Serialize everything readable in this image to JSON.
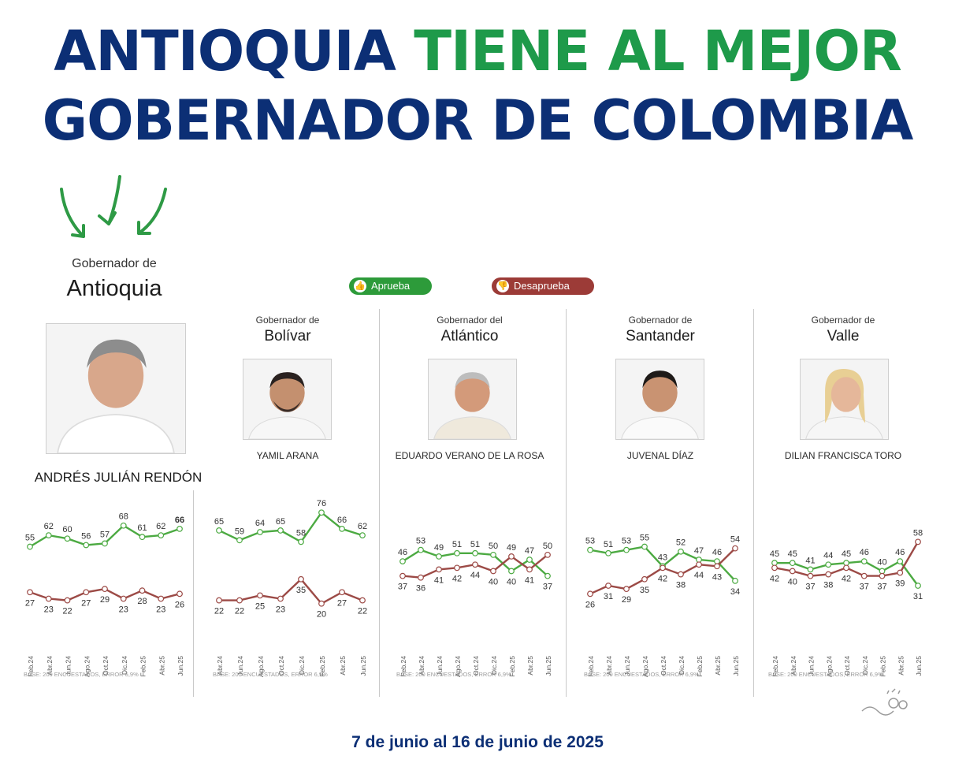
{
  "title": {
    "line1_blue": "ANTIOQUIA",
    "line1_green": "TIENE AL MEJOR",
    "line2": "GOBERNADOR DE COLOMBIA"
  },
  "featured": {
    "label_small": "Gobernador de",
    "label_big": "Antioquia",
    "name": "ANDRÉS JULIÁN RENDÓN"
  },
  "legend": {
    "approve": "Aprueba",
    "disapprove": "Desaprueba",
    "approve_color": "#2d9b3a",
    "disapprove_color": "#9c3b37"
  },
  "governors": [
    {
      "label_small": "Gobernador de",
      "label_big": "Bolívar",
      "name": "YAMIL ARANA"
    },
    {
      "label_small": "Gobernador del",
      "label_big": "Atlántico",
      "name": "EDUARDO VERANO DE LA ROSA"
    },
    {
      "label_small": "Gobernador de",
      "label_big": "Santander",
      "name": "JUVENAL DÍAZ"
    },
    {
      "label_small": "Gobernador de",
      "label_big": "Valle",
      "name": "DILIAN FRANCISCA TORO"
    }
  ],
  "date_range": "7 de junio al 16 de junio de 2025",
  "colors": {
    "blue": "#0c2f75",
    "green": "#1e9a4a",
    "approve_line": "#4caa42",
    "disapprove_line": "#9c4a46"
  },
  "chart_data": [
    {
      "type": "line",
      "region": "Antioquia",
      "categories": [
        "Feb.24",
        "Abr.24",
        "Jun.24",
        "Ago.24",
        "Oct.24",
        "Dic.24",
        "Feb.25",
        "Abr.25",
        "Jun.25"
      ],
      "series": [
        {
          "name": "Aprueba",
          "values": [
            55,
            62,
            60,
            56,
            57,
            68,
            61,
            62,
            66
          ]
        },
        {
          "name": "Desaprueba",
          "values": [
            27,
            23,
            22,
            27,
            29,
            23,
            28,
            23,
            26
          ]
        }
      ],
      "base_note": "BASE: 200 ENCUESTADOS, ERROR 6,9%"
    },
    {
      "type": "line",
      "region": "Bolívar",
      "categories": [
        "Abr.24",
        "Jun.24",
        "Ago.24",
        "Oct.24",
        "Dic.24",
        "Feb.25",
        "Abr.25",
        "Jun.25"
      ],
      "series": [
        {
          "name": "Aprueba",
          "values": [
            65,
            59,
            64,
            65,
            58,
            76,
            66,
            62
          ]
        },
        {
          "name": "Desaprueba",
          "values": [
            22,
            22,
            25,
            23,
            35,
            20,
            27,
            22
          ]
        }
      ],
      "base_note": "BASE: 200 ENCUESTADOS, ERROR 6,9%"
    },
    {
      "type": "line",
      "region": "Atlántico",
      "categories": [
        "Feb.24",
        "Abr.24",
        "Jun.24",
        "Ago.24",
        "Oct.24",
        "Dic.24",
        "Feb.25",
        "Abr.25",
        "Jun.25"
      ],
      "series": [
        {
          "name": "Aprueba",
          "values": [
            46,
            53,
            49,
            51,
            51,
            50,
            40,
            47,
            37
          ]
        },
        {
          "name": "Desaprueba",
          "values": [
            37,
            36,
            41,
            42,
            44,
            40,
            49,
            41,
            50
          ]
        }
      ],
      "base_note": "BASE: 200 ENCUESTADOS, ERROR 6,9%"
    },
    {
      "type": "line",
      "region": "Santander",
      "categories": [
        "Feb.24",
        "Abr.24",
        "Jun.24",
        "Ago.24",
        "Oct.24",
        "Dic.24",
        "Feb.25",
        "Abr.25",
        "Jun.25"
      ],
      "series": [
        {
          "name": "Aprueba",
          "values": [
            53,
            51,
            53,
            55,
            43,
            52,
            47,
            46,
            34
          ]
        },
        {
          "name": "Desaprueba",
          "values": [
            26,
            31,
            29,
            35,
            42,
            38,
            44,
            43,
            54
          ]
        }
      ],
      "base_note": "BASE: 200 ENCUESTADOS, ERROR 6,9%"
    },
    {
      "type": "line",
      "region": "Valle",
      "categories": [
        "Feb.24",
        "Abr.24",
        "Jun.24",
        "Ago.24",
        "Oct.24",
        "Dic.24",
        "Feb.25",
        "Abr.25",
        "Jun.25"
      ],
      "series": [
        {
          "name": "Aprueba",
          "values": [
            45,
            45,
            41,
            44,
            45,
            46,
            40,
            46,
            31
          ]
        },
        {
          "name": "Desaprueba",
          "values": [
            42,
            40,
            37,
            38,
            42,
            37,
            37,
            39,
            58
          ]
        }
      ],
      "base_note": "BASE: 200 ENCUESTADOS, ERROR 6,9%"
    }
  ]
}
